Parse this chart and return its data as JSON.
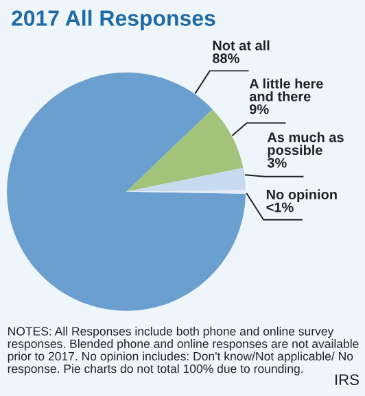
{
  "chart_data": {
    "type": "pie",
    "title": "2017 All Responses",
    "categories": [
      "Not at all",
      "A little here and there",
      "As much as possible",
      "No opinion"
    ],
    "values": [
      88,
      9,
      3,
      0.5
    ],
    "value_labels": [
      "88%",
      "9%",
      "3%",
      "<1%"
    ],
    "colors": [
      "#6a9fcf",
      "#a3c27a",
      "#c6d9ee",
      "#e4edf7"
    ],
    "annotations": [
      "NOTES: All Responses include both phone and online survey responses. Blended phone and online responses are not available prior to 2017. No opinion includes: Don't know/Not applicable/ No response. Pie charts do not total 100% due to rounding.",
      "IRS"
    ]
  }
}
